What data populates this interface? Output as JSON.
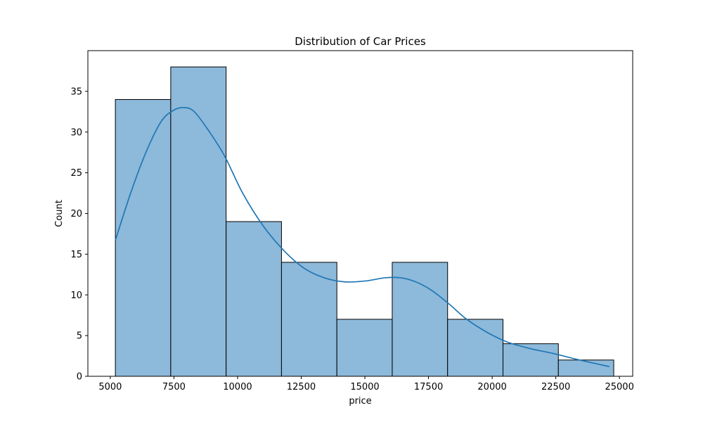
{
  "chart_data": {
    "type": "bar",
    "subtype": "histogram",
    "title": "Distribution of Car Prices",
    "xlabel": "price",
    "ylabel": "Count",
    "xlim": [
      4120,
      25520
    ],
    "ylim": [
      0,
      40
    ],
    "xticks": [
      5000,
      7500,
      10000,
      12500,
      15000,
      17500,
      20000,
      22500,
      25000
    ],
    "xtick_labels": [
      "5000",
      "7500",
      "10000",
      "12500",
      "15000",
      "17500",
      "20000",
      "22500",
      "25000"
    ],
    "yticks": [
      0,
      5,
      10,
      15,
      20,
      25,
      30,
      35
    ],
    "ytick_labels": [
      "0",
      "5",
      "10",
      "15",
      "20",
      "25",
      "30",
      "35"
    ],
    "bin_edges": [
      5200,
      7375,
      9550,
      11725,
      13900,
      16075,
      18250,
      20425,
      22600,
      24775
    ],
    "values": [
      34,
      38,
      19,
      14,
      7,
      14,
      7,
      4,
      2
    ],
    "kde": {
      "x": [
        5200,
        5800,
        6400,
        7000,
        7500,
        7900,
        8300,
        8900,
        9500,
        10200,
        11000,
        11800,
        12600,
        13400,
        14200,
        15000,
        15800,
        16400,
        17000,
        17600,
        18300,
        19000,
        19800,
        20600,
        21500,
        22400,
        23300,
        24000,
        24600
      ],
      "y": [
        16.7,
        22.5,
        27.5,
        31.3,
        32.7,
        33.0,
        32.5,
        30.0,
        27.0,
        22.5,
        18.5,
        15.5,
        13.3,
        12.1,
        11.6,
        11.7,
        12.1,
        12.1,
        11.6,
        10.6,
        8.9,
        7.0,
        5.4,
        4.2,
        3.4,
        2.8,
        2.1,
        1.6,
        1.2
      ]
    },
    "bar_color": "#8db9da",
    "bar_edge_color": "#000000",
    "kde_color": "#1f77b4",
    "grid": false,
    "legend": false
  }
}
